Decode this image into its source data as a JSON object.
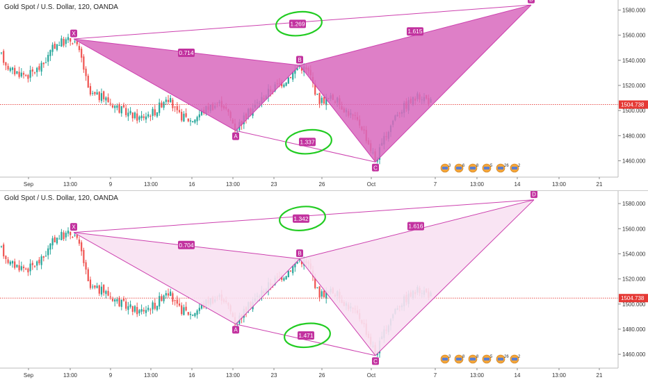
{
  "colors": {
    "bull": "#26a69a",
    "bear": "#ef5350",
    "pattern_line": "#cc3fae",
    "pattern_fill_top": "#d868bd",
    "pattern_fill_bottom": "#f8e1f2",
    "label_bg": "#c2329f",
    "marker": "#22cc22",
    "price_line": "#e53935"
  },
  "current_price": 1504.738,
  "chart_data": [
    {
      "type": "candlestick",
      "title": "Gold Spot / U.S. Dollar, 120, OANDA",
      "ylim": [
        1447,
        1588
      ],
      "yticks": [
        1460,
        1480,
        1500,
        1520,
        1540,
        1560,
        1580
      ],
      "ytick_labels": [
        "1460.000",
        "1480.000",
        "1500.000",
        "1520.000",
        "1540.000",
        "1560.000",
        "1580.000"
      ],
      "xticks": [
        {
          "label": "Sep",
          "x": 41
        },
        {
          "label": "13:00",
          "x": 101
        },
        {
          "label": "9",
          "x": 159
        },
        {
          "label": "13:00",
          "x": 217
        },
        {
          "label": "16",
          "x": 276
        },
        {
          "label": "13:00",
          "x": 335
        },
        {
          "label": "23",
          "x": 394
        },
        {
          "label": "26",
          "x": 463
        },
        {
          "label": "Oct",
          "x": 534
        },
        {
          "label": "7",
          "x": 626
        },
        {
          "label": "13:00",
          "x": 686
        },
        {
          "label": "14",
          "x": 744
        },
        {
          "label": "13:00",
          "x": 804
        },
        {
          "label": "21",
          "x": 862
        }
      ],
      "pattern_points": [
        {
          "name": "X",
          "x": 106,
          "y": 1557
        },
        {
          "name": "A",
          "x": 339,
          "y": 1484
        },
        {
          "name": "B",
          "x": 431,
          "y": 1536
        },
        {
          "name": "C",
          "x": 540,
          "y": 1459
        },
        {
          "name": "D",
          "x": 764,
          "y": 1584
        }
      ],
      "ratios": [
        {
          "value": "1.269",
          "x": 428,
          "y": 1569,
          "circled": true
        },
        {
          "value": "0.714",
          "x": 268,
          "y": 1546,
          "circled": false
        },
        {
          "value": "1.615",
          "x": 597,
          "y": 1563,
          "circled": false
        },
        {
          "value": "1.337",
          "x": 442,
          "y": 1475,
          "circled": true
        }
      ],
      "events": [
        "3",
        "6",
        "8",
        "5",
        "26",
        "2"
      ]
    },
    {
      "type": "candlestick",
      "title": "Gold Spot / U.S. Dollar, 120, OANDA",
      "ylim": [
        1449,
        1590
      ],
      "yticks": [
        1460,
        1480,
        1500,
        1520,
        1540,
        1560,
        1580
      ],
      "ytick_labels": [
        "1460.000",
        "1480.000",
        "1500.000",
        "1520.000",
        "1540.000",
        "1560.000",
        "1580.000"
      ],
      "xticks": [
        {
          "label": "Sep",
          "x": 41
        },
        {
          "label": "13:00",
          "x": 101
        },
        {
          "label": "9",
          "x": 159
        },
        {
          "label": "13:00",
          "x": 217
        },
        {
          "label": "16",
          "x": 276
        },
        {
          "label": "13:00",
          "x": 335
        },
        {
          "label": "23",
          "x": 394
        },
        {
          "label": "26",
          "x": 463
        },
        {
          "label": "Oct",
          "x": 534
        },
        {
          "label": "7",
          "x": 626
        },
        {
          "label": "13:00",
          "x": 686
        },
        {
          "label": "14",
          "x": 744
        },
        {
          "label": "13:00",
          "x": 804
        },
        {
          "label": "21",
          "x": 862
        }
      ],
      "pattern_points": [
        {
          "name": "X",
          "x": 106,
          "y": 1557
        },
        {
          "name": "A",
          "x": 339,
          "y": 1484
        },
        {
          "name": "B",
          "x": 431,
          "y": 1536
        },
        {
          "name": "C",
          "x": 540,
          "y": 1459
        },
        {
          "name": "D",
          "x": 768,
          "y": 1583
        }
      ],
      "ratios": [
        {
          "value": "1.342",
          "x": 433,
          "y": 1568,
          "circled": true
        },
        {
          "value": "0.704",
          "x": 268,
          "y": 1547,
          "circled": false
        },
        {
          "value": "1.616",
          "x": 598,
          "y": 1562,
          "circled": false
        },
        {
          "value": "1.471",
          "x": 440,
          "y": 1475,
          "circled": true
        }
      ],
      "events": [
        "3",
        "8",
        "8",
        "5",
        "26",
        "2"
      ]
    }
  ]
}
